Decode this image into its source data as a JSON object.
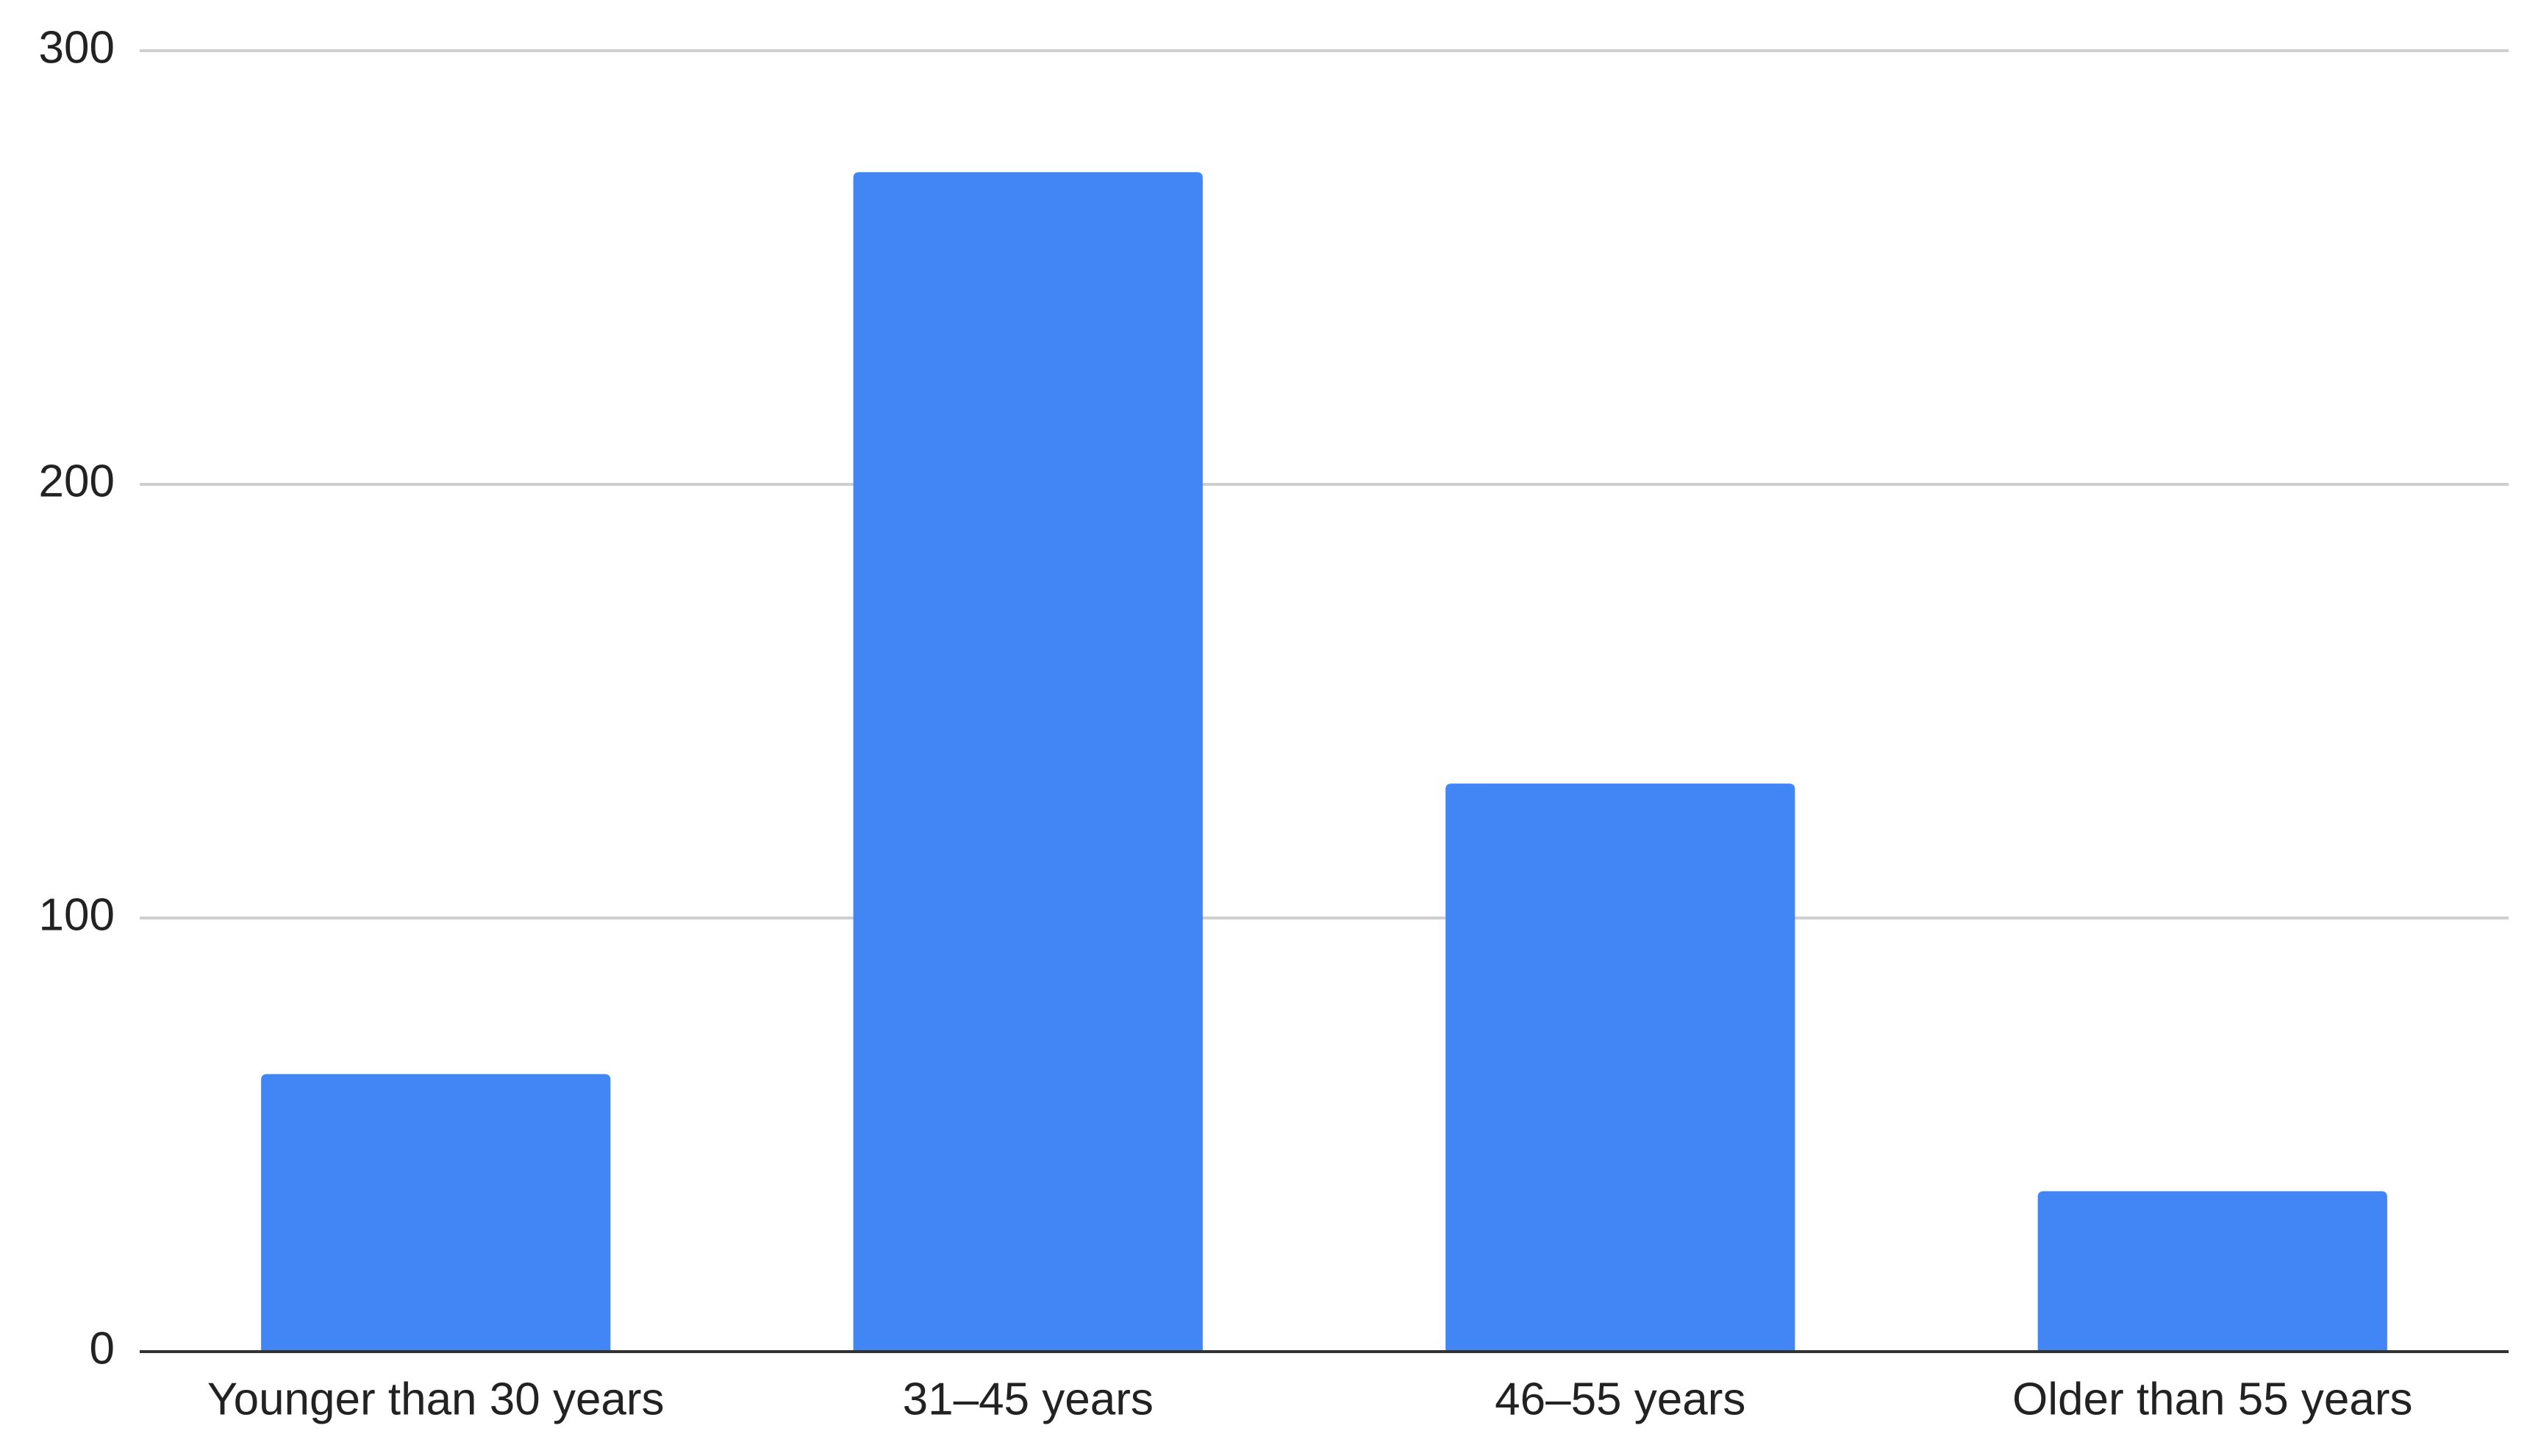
{
  "chart_data": {
    "type": "bar",
    "categories": [
      "Younger than 30 years",
      "31–45 years",
      "46–55 years",
      "Older than 55 years"
    ],
    "values": [
      64,
      272,
      131,
      37
    ],
    "color": "#4285f4",
    "ylim": [
      0,
      300
    ],
    "yticks": [
      0,
      100,
      200,
      300
    ],
    "grid": true
  }
}
